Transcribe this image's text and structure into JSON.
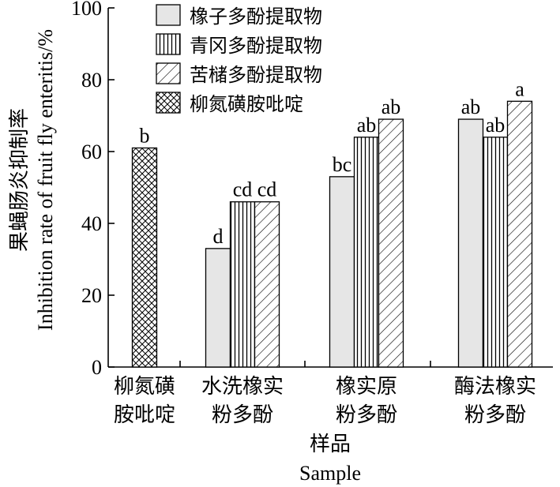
{
  "chart_data": {
    "type": "bar",
    "xlabel_cn": "样品",
    "xlabel_en": "Sample",
    "ylabel_cn": "果蝇肠炎抑制率",
    "ylabel_en": "Inhibition rate of fruit fly enteritis/%",
    "ylim": [
      0,
      100
    ],
    "yticks": [
      "0",
      "20",
      "40",
      "60",
      "80",
      "100"
    ],
    "legend_position": "top-center",
    "grid": false,
    "categories": [
      {
        "line1": "柳氮磺",
        "line2": "胺吡啶"
      },
      {
        "line1": "水洗橡实",
        "line2": "粉多酚"
      },
      {
        "line1": "橡实原",
        "line2": "粉多酚"
      },
      {
        "line1": "酶法橡实",
        "line2": "粉多酚"
      }
    ],
    "series": [
      {
        "name": "橡子多酚提取物",
        "pattern": "solid",
        "fill": "#e6e6e6",
        "values": [
          null,
          33,
          53,
          69
        ],
        "labels": [
          null,
          "d",
          "bc",
          "ab"
        ]
      },
      {
        "name": "青冈多酚提取物",
        "pattern": "vertical",
        "values": [
          null,
          46,
          64,
          64
        ],
        "labels": [
          null,
          "cd",
          "ab",
          "ab"
        ]
      },
      {
        "name": "苦槠多酚提取物",
        "pattern": "diagonal",
        "values": [
          null,
          46,
          69,
          74
        ],
        "labels": [
          null,
          "cd",
          "ab",
          "a"
        ]
      },
      {
        "name": "柳氮磺胺吡啶",
        "pattern": "crosshatch",
        "values": [
          61,
          null,
          null,
          null
        ],
        "labels": [
          "b",
          null,
          null,
          null
        ]
      }
    ]
  }
}
